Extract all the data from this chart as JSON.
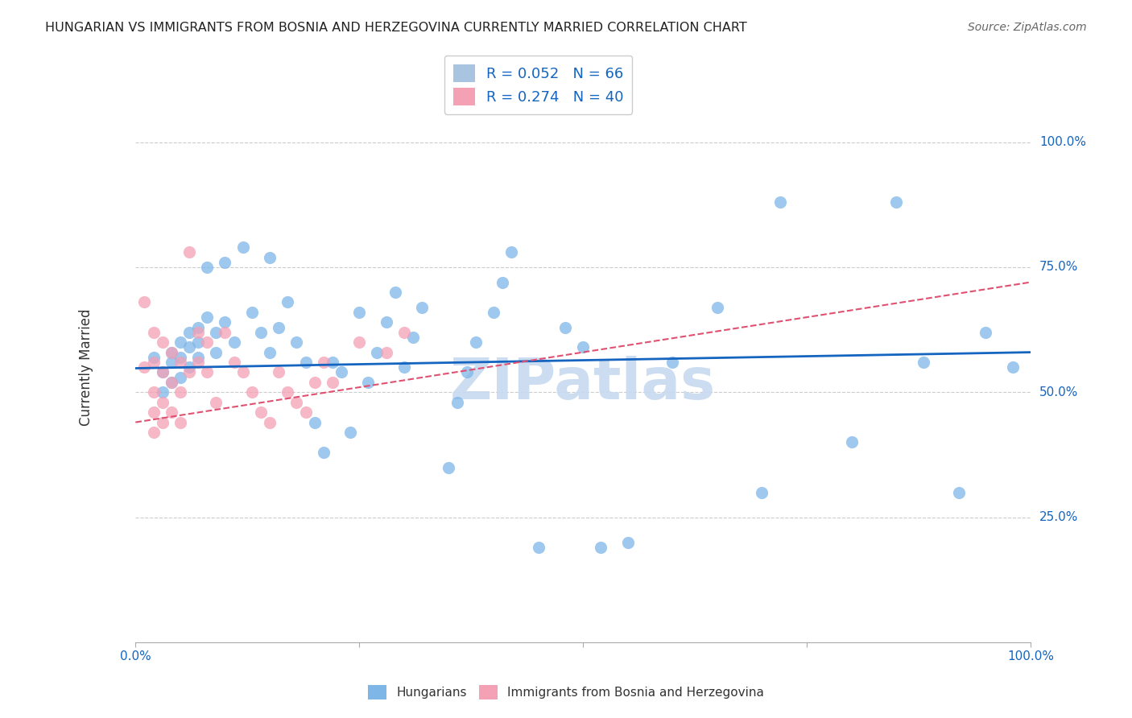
{
  "title": "HUNGARIAN VS IMMIGRANTS FROM BOSNIA AND HERZEGOVINA CURRENTLY MARRIED CORRELATION CHART",
  "source": "Source: ZipAtlas.com",
  "ylabel": "Currently Married",
  "ytick_labels": [
    "100.0%",
    "75.0%",
    "50.0%",
    "25.0%"
  ],
  "ytick_values": [
    1.0,
    0.75,
    0.5,
    0.25
  ],
  "xlim": [
    0.0,
    1.0
  ],
  "ylim": [
    0.0,
    1.1
  ],
  "legend_entries": [
    {
      "label": "R = 0.052   N = 66",
      "color": "#a8c4e0"
    },
    {
      "label": "R = 0.274   N = 40",
      "color": "#f4a0b5"
    }
  ],
  "blue_scatter_x": [
    0.02,
    0.03,
    0.03,
    0.04,
    0.04,
    0.04,
    0.05,
    0.05,
    0.05,
    0.06,
    0.06,
    0.06,
    0.07,
    0.07,
    0.07,
    0.08,
    0.08,
    0.09,
    0.09,
    0.1,
    0.1,
    0.11,
    0.12,
    0.13,
    0.14,
    0.15,
    0.15,
    0.16,
    0.17,
    0.18,
    0.19,
    0.2,
    0.21,
    0.22,
    0.23,
    0.24,
    0.25,
    0.26,
    0.27,
    0.28,
    0.29,
    0.3,
    0.31,
    0.32,
    0.35,
    0.36,
    0.37,
    0.38,
    0.4,
    0.41,
    0.42,
    0.45,
    0.48,
    0.5,
    0.52,
    0.55,
    0.6,
    0.65,
    0.7,
    0.72,
    0.8,
    0.85,
    0.88,
    0.92,
    0.95,
    0.98
  ],
  "blue_scatter_y": [
    0.57,
    0.54,
    0.5,
    0.58,
    0.56,
    0.52,
    0.6,
    0.57,
    0.53,
    0.62,
    0.59,
    0.55,
    0.63,
    0.6,
    0.57,
    0.75,
    0.65,
    0.62,
    0.58,
    0.76,
    0.64,
    0.6,
    0.79,
    0.66,
    0.62,
    0.77,
    0.58,
    0.63,
    0.68,
    0.6,
    0.56,
    0.44,
    0.38,
    0.56,
    0.54,
    0.42,
    0.66,
    0.52,
    0.58,
    0.64,
    0.7,
    0.55,
    0.61,
    0.67,
    0.35,
    0.48,
    0.54,
    0.6,
    0.66,
    0.72,
    0.78,
    0.19,
    0.63,
    0.59,
    0.19,
    0.2,
    0.56,
    0.67,
    0.3,
    0.88,
    0.4,
    0.88,
    0.56,
    0.3,
    0.62,
    0.55
  ],
  "pink_scatter_x": [
    0.01,
    0.01,
    0.02,
    0.02,
    0.02,
    0.02,
    0.02,
    0.03,
    0.03,
    0.03,
    0.03,
    0.04,
    0.04,
    0.04,
    0.05,
    0.05,
    0.05,
    0.06,
    0.06,
    0.07,
    0.07,
    0.08,
    0.08,
    0.09,
    0.1,
    0.11,
    0.12,
    0.13,
    0.14,
    0.15,
    0.16,
    0.17,
    0.18,
    0.19,
    0.2,
    0.21,
    0.22,
    0.25,
    0.28,
    0.3
  ],
  "pink_scatter_y": [
    0.68,
    0.55,
    0.62,
    0.56,
    0.5,
    0.46,
    0.42,
    0.6,
    0.54,
    0.48,
    0.44,
    0.58,
    0.52,
    0.46,
    0.56,
    0.5,
    0.44,
    0.78,
    0.54,
    0.62,
    0.56,
    0.6,
    0.54,
    0.48,
    0.62,
    0.56,
    0.54,
    0.5,
    0.46,
    0.44,
    0.54,
    0.5,
    0.48,
    0.46,
    0.52,
    0.56,
    0.52,
    0.6,
    0.58,
    0.62
  ],
  "blue_line_x": [
    0.0,
    1.0
  ],
  "blue_line_y": [
    0.548,
    0.58
  ],
  "pink_line_x": [
    0.0,
    1.0
  ],
  "pink_line_y": [
    0.44,
    0.72
  ],
  "scatter_size": 120,
  "blue_color": "#7EB6E8",
  "pink_color": "#F4A0B5",
  "blue_line_color": "#1565C0",
  "pink_line_color": "#E05070",
  "background_color": "#ffffff",
  "grid_color": "#cccccc",
  "text_color": "#1565C0",
  "watermark_text": "ZIPatlas",
  "watermark_color": "#c8daf0",
  "watermark_fontsize": 52
}
